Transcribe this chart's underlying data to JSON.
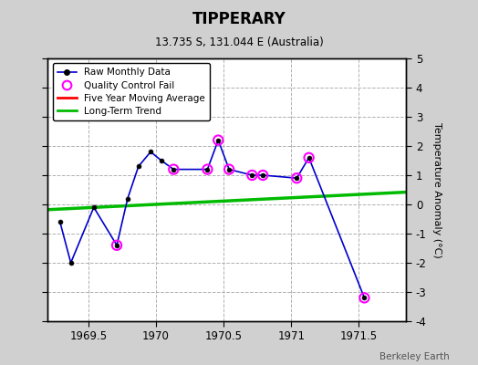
{
  "title": "TIPPERARY",
  "subtitle": "13.735 S, 131.044 E (Australia)",
  "ylabel": "Temperature Anomaly (°C)",
  "credit": "Berkeley Earth",
  "xlim": [
    1969.2,
    1971.85
  ],
  "ylim": [
    -4,
    5
  ],
  "yticks": [
    -4,
    -3,
    -2,
    -1,
    0,
    1,
    2,
    3,
    4,
    5
  ],
  "xticks": [
    1969.5,
    1970.0,
    1970.5,
    1971.0,
    1971.5
  ],
  "xticklabels": [
    "1969.5",
    "1970",
    "1970.5",
    "1971",
    "1971.5"
  ],
  "raw_x": [
    1969.29,
    1969.37,
    1969.54,
    1969.71,
    1969.79,
    1969.87,
    1969.96,
    1970.04,
    1970.13,
    1970.38,
    1970.46,
    1970.54,
    1970.71,
    1970.79,
    1971.04,
    1971.13,
    1971.54
  ],
  "raw_y": [
    -0.6,
    -2.0,
    -0.1,
    -1.4,
    0.2,
    1.3,
    1.8,
    1.5,
    1.2,
    1.2,
    2.2,
    1.2,
    1.0,
    1.0,
    0.9,
    1.6,
    -3.2
  ],
  "qc_fail_x": [
    1969.71,
    1970.13,
    1970.38,
    1970.46,
    1970.54,
    1970.71,
    1970.79,
    1971.04,
    1971.13,
    1971.54
  ],
  "qc_fail_y": [
    -1.4,
    1.2,
    1.2,
    2.2,
    1.2,
    1.0,
    1.0,
    0.9,
    1.6,
    -3.2
  ],
  "trend_x": [
    1969.2,
    1971.85
  ],
  "trend_y": [
    -0.18,
    0.42
  ],
  "raw_line_color": "#0000cc",
  "raw_marker_color": "#000000",
  "qc_color": "#ff00ff",
  "trend_color": "#00bb00",
  "fiveyr_color": "#ff0000",
  "bg_color": "#d0d0d0",
  "plot_bg_color": "#ffffff",
  "grid_color": "#b0b0b0"
}
